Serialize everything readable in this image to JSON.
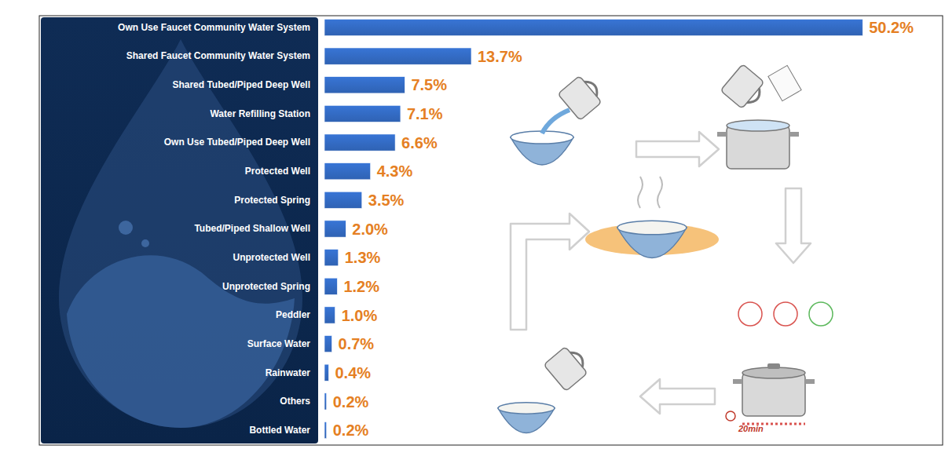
{
  "chart_data": {
    "type": "bar",
    "orientation": "horizontal",
    "categories": [
      "Own Use Faucet Community Water System",
      "Shared Faucet Community Water System",
      "Shared Tubed/Piped Deep Well",
      "Water Refilling Station",
      "Own Use Tubed/Piped Deep Well",
      "Protected Well",
      "Protected Spring",
      "Tubed/Piped Shallow Well",
      "Unprotected Well",
      "Unprotected Spring",
      "Peddler",
      "Surface Water",
      "Rainwater",
      "Others",
      "Bottled Water"
    ],
    "values": [
      50.2,
      13.7,
      7.5,
      7.1,
      6.6,
      4.3,
      3.5,
      2.0,
      1.3,
      1.2,
      1.0,
      0.7,
      0.4,
      0.2,
      0.2
    ],
    "value_labels": [
      "50.2%",
      "13.7%",
      "7.5%",
      "7.1%",
      "6.6%",
      "4.3%",
      "3.5%",
      "2.0%",
      "1.3%",
      "1.2%",
      "1.0%",
      "0.7%",
      "0.4%",
      "0.2%",
      "0.2%"
    ],
    "color": "#2f62b3",
    "xlim": [
      0,
      55
    ],
    "data_labels": true,
    "tick_labels": false,
    "grid": false,
    "annotations": [
      "20min"
    ]
  }
}
